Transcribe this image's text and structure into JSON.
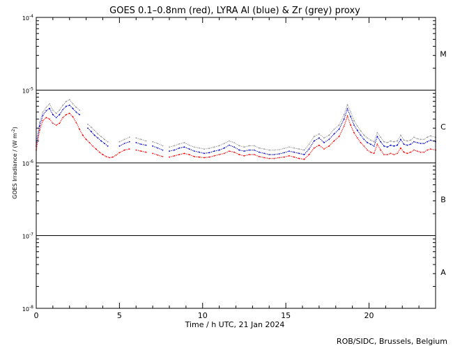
{
  "chart_data": {
    "type": "scatter",
    "title": "GOES 0.1–0.8nm (red), LYRA Al (blue) & Zr (grey) proxy",
    "xlabel": "Time / h UTC, 21 Jan 2024",
    "ylabel_prefix": "GOES Irradiance / (W m",
    "ylabel_sup": "-2",
    "ylabel_suffix": ")",
    "xlim": [
      0,
      24
    ],
    "ylim_log": [
      -8,
      -4
    ],
    "x_ticks": [
      {
        "value": 0,
        "label": "0"
      },
      {
        "value": 5,
        "label": "5"
      },
      {
        "value": 10,
        "label": "10"
      },
      {
        "value": 15,
        "label": "15"
      },
      {
        "value": 20,
        "label": "20"
      }
    ],
    "y_ticks": [
      {
        "exp": -4,
        "label_base": "10",
        "label_exp": "-4"
      },
      {
        "exp": -5,
        "label_base": "10",
        "label_exp": "-5"
      },
      {
        "exp": -6,
        "label_base": "10",
        "label_exp": "-6"
      },
      {
        "exp": -7,
        "label_base": "10",
        "label_exp": "-7"
      },
      {
        "exp": -8,
        "label_base": "10",
        "label_exp": "-8"
      }
    ],
    "class_lines": [
      -5,
      -6,
      -7
    ],
    "flare_classes": [
      {
        "label": "M",
        "center_exp": -4.5
      },
      {
        "label": "C",
        "center_exp": -5.5
      },
      {
        "label": "B",
        "center_exp": -6.5
      },
      {
        "label": "A",
        "center_exp": -7.5
      }
    ],
    "series": [
      {
        "name": "GOES 0.1–0.8nm",
        "color": "#ff0000",
        "x": [
          0.0,
          0.2,
          0.4,
          0.6,
          0.8,
          1.0,
          1.2,
          1.4,
          1.6,
          1.8,
          2.0,
          2.2,
          2.4,
          2.6,
          2.8,
          3.0,
          3.2,
          3.4,
          3.6,
          3.8,
          4.0,
          4.2,
          4.4,
          4.6,
          4.8,
          5.0,
          5.3,
          5.6,
          6.0,
          6.3,
          6.6,
          7.0,
          7.3,
          7.6,
          8.0,
          8.3,
          8.6,
          8.9,
          9.2,
          9.5,
          9.8,
          10.1,
          10.4,
          10.7,
          11.0,
          11.3,
          11.6,
          11.9,
          12.2,
          12.5,
          12.8,
          13.1,
          13.4,
          13.7,
          14.0,
          14.3,
          14.6,
          14.9,
          15.2,
          15.5,
          15.8,
          16.1,
          16.4,
          16.7,
          17.0,
          17.3,
          17.6,
          17.9,
          18.2,
          18.5,
          18.7,
          18.9,
          19.1,
          19.3,
          19.5,
          19.7,
          19.9,
          20.1,
          20.3,
          20.5,
          20.7,
          20.9,
          21.1,
          21.3,
          21.5,
          21.7,
          21.9,
          22.1,
          22.3,
          22.5,
          22.7,
          22.9,
          23.1,
          23.3,
          23.5,
          23.7,
          24.0
        ],
        "y": [
          1.5e-06,
          2.8e-06,
          3.8e-06,
          4.2e-06,
          4e-06,
          3.5e-06,
          3.3e-06,
          3.5e-06,
          4.2e-06,
          4.6e-06,
          4.8e-06,
          4.3e-06,
          3.6e-06,
          2.9e-06,
          2.4e-06,
          2.1e-06,
          1.9e-06,
          1.7e-06,
          1.55e-06,
          1.4e-06,
          1.3e-06,
          1.22e-06,
          1.18e-06,
          1.2e-06,
          1.28e-06,
          1.38e-06,
          1.5e-06,
          1.55e-06,
          1.5e-06,
          1.45e-06,
          1.4e-06,
          1.35e-06,
          1.28e-06,
          1.22e-06,
          1.2e-06,
          1.25e-06,
          1.3e-06,
          1.35e-06,
          1.3e-06,
          1.22e-06,
          1.2e-06,
          1.18e-06,
          1.2e-06,
          1.25e-06,
          1.3e-06,
          1.35e-06,
          1.45e-06,
          1.4e-06,
          1.3e-06,
          1.25e-06,
          1.3e-06,
          1.3e-06,
          1.22e-06,
          1.18e-06,
          1.15e-06,
          1.15e-06,
          1.18e-06,
          1.2e-06,
          1.25e-06,
          1.2e-06,
          1.15e-06,
          1.12e-06,
          1.3e-06,
          1.6e-06,
          1.75e-06,
          1.55e-06,
          1.7e-06,
          2e-06,
          2.3e-06,
          3.2e-06,
          4.4e-06,
          3.3e-06,
          2.6e-06,
          2.2e-06,
          1.9e-06,
          1.7e-06,
          1.5e-06,
          1.4e-06,
          1.35e-06,
          1.8e-06,
          1.5e-06,
          1.3e-06,
          1.3e-06,
          1.35e-06,
          1.3e-06,
          1.35e-06,
          1.6e-06,
          1.4e-06,
          1.35e-06,
          1.4e-06,
          1.5e-06,
          1.45e-06,
          1.4e-06,
          1.4e-06,
          1.5e-06,
          1.55e-06,
          1.5e-06
        ]
      },
      {
        "name": "LYRA Al",
        "color": "#0000cc",
        "x": [
          0.0,
          0.2,
          0.4,
          0.6,
          0.8,
          1.0,
          1.2,
          1.4,
          1.6,
          1.8,
          2.0,
          2.2,
          2.4,
          2.6,
          3.1,
          3.3,
          3.5,
          3.7,
          3.9,
          4.1,
          4.3,
          5.0,
          5.3,
          5.6,
          6.0,
          6.3,
          6.6,
          7.0,
          7.3,
          7.6,
          8.0,
          8.3,
          8.6,
          8.9,
          9.2,
          9.5,
          9.8,
          10.1,
          10.4,
          10.7,
          11.0,
          11.3,
          11.6,
          11.9,
          12.2,
          12.5,
          12.8,
          13.1,
          13.4,
          13.7,
          14.0,
          14.3,
          14.6,
          14.9,
          15.2,
          15.5,
          15.8,
          16.1,
          16.4,
          16.7,
          17.0,
          17.3,
          17.6,
          17.9,
          18.2,
          18.5,
          18.7,
          18.9,
          19.1,
          19.3,
          19.5,
          19.7,
          19.9,
          20.1,
          20.3,
          20.5,
          20.7,
          20.9,
          21.1,
          21.3,
          21.5,
          21.7,
          21.9,
          22.1,
          22.3,
          22.5,
          22.7,
          22.9,
          23.1,
          23.3,
          23.5,
          23.7,
          24.0
        ],
        "y": [
          1.7e-06,
          3.2e-06,
          4.5e-06,
          5.2e-06,
          5.6e-06,
          4.6e-06,
          4.2e-06,
          4.6e-06,
          5.4e-06,
          6e-06,
          6.2e-06,
          5.6e-06,
          5e-06,
          4.6e-06,
          3e-06,
          2.7e-06,
          2.4e-06,
          2.2e-06,
          2e-06,
          1.85e-06,
          1.7e-06,
          1.7e-06,
          1.85e-06,
          1.95e-06,
          1.9e-06,
          1.8e-06,
          1.75e-06,
          1.7e-06,
          1.6e-06,
          1.5e-06,
          1.45e-06,
          1.5e-06,
          1.6e-06,
          1.65e-06,
          1.55e-06,
          1.45e-06,
          1.4e-06,
          1.35e-06,
          1.38e-06,
          1.45e-06,
          1.5e-06,
          1.6e-06,
          1.75e-06,
          1.65e-06,
          1.5e-06,
          1.45e-06,
          1.5e-06,
          1.5e-06,
          1.4e-06,
          1.35e-06,
          1.3e-06,
          1.3e-06,
          1.33e-06,
          1.38e-06,
          1.45e-06,
          1.4e-06,
          1.35e-06,
          1.3e-06,
          1.55e-06,
          2e-06,
          2.2e-06,
          1.9e-06,
          2.1e-06,
          2.5e-06,
          2.9e-06,
          4e-06,
          5.5e-06,
          4.3e-06,
          3.3e-06,
          2.8e-06,
          2.4e-06,
          2.1e-06,
          1.9e-06,
          1.8e-06,
          1.7e-06,
          2.3e-06,
          1.95e-06,
          1.7e-06,
          1.65e-06,
          1.75e-06,
          1.7e-06,
          1.75e-06,
          2.1e-06,
          1.8e-06,
          1.75e-06,
          1.8e-06,
          1.95e-06,
          1.9e-06,
          1.85e-06,
          1.85e-06,
          1.95e-06,
          2.05e-06,
          1.95e-06
        ]
      },
      {
        "name": "Zr",
        "color": "#999999",
        "x": [
          0.0,
          0.2,
          0.4,
          0.6,
          0.8,
          1.0,
          1.2,
          1.4,
          1.6,
          1.8,
          2.0,
          2.2,
          2.4,
          2.6,
          3.1,
          3.3,
          3.5,
          3.7,
          3.9,
          4.1,
          4.3,
          5.0,
          5.3,
          5.6,
          6.0,
          6.3,
          6.6,
          7.0,
          7.3,
          7.6,
          8.0,
          8.3,
          8.6,
          8.9,
          9.2,
          9.5,
          9.8,
          10.1,
          10.4,
          10.7,
          11.0,
          11.3,
          11.6,
          11.9,
          12.2,
          12.5,
          12.8,
          13.1,
          13.4,
          13.7,
          14.0,
          14.3,
          14.6,
          14.9,
          15.2,
          15.5,
          15.8,
          16.1,
          16.4,
          16.7,
          17.0,
          17.3,
          17.6,
          17.9,
          18.2,
          18.5,
          18.7,
          18.9,
          19.1,
          19.3,
          19.5,
          19.7,
          19.9,
          20.1,
          20.3,
          20.5,
          20.7,
          20.9,
          21.1,
          21.3,
          21.5,
          21.7,
          21.9,
          22.1,
          22.3,
          22.5,
          22.7,
          22.9,
          23.1,
          23.3,
          23.5,
          23.7,
          24.0
        ],
        "y": [
          1.9e-06,
          3.6e-06,
          5e-06,
          5.8e-06,
          6.5e-06,
          5.3e-06,
          4.8e-06,
          5.3e-06,
          6.2e-06,
          7e-06,
          7.4e-06,
          6.5e-06,
          5.8e-06,
          5.3e-06,
          3.4e-06,
          3.1e-06,
          2.8e-06,
          2.5e-06,
          2.3e-06,
          2.1e-06,
          1.95e-06,
          1.95e-06,
          2.1e-06,
          2.25e-06,
          2.2e-06,
          2.1e-06,
          2e-06,
          1.95e-06,
          1.85e-06,
          1.72e-06,
          1.65e-06,
          1.72e-06,
          1.82e-06,
          1.9e-06,
          1.75e-06,
          1.65e-06,
          1.6e-06,
          1.55e-06,
          1.58e-06,
          1.65e-06,
          1.72e-06,
          1.85e-06,
          2e-06,
          1.9e-06,
          1.72e-06,
          1.65e-06,
          1.72e-06,
          1.72e-06,
          1.6e-06,
          1.55e-06,
          1.5e-06,
          1.5e-06,
          1.52e-06,
          1.58e-06,
          1.65e-06,
          1.6e-06,
          1.55e-06,
          1.5e-06,
          1.8e-06,
          2.3e-06,
          2.5e-06,
          2.2e-06,
          2.4e-06,
          2.9e-06,
          3.3e-06,
          4.6e-06,
          6.3e-06,
          5e-06,
          3.8e-06,
          3.2e-06,
          2.75e-06,
          2.4e-06,
          2.2e-06,
          2.05e-06,
          1.95e-06,
          2.6e-06,
          2.25e-06,
          1.95e-06,
          1.9e-06,
          2e-06,
          1.95e-06,
          2e-06,
          2.4e-06,
          2.05e-06,
          2e-06,
          2.05e-06,
          2.25e-06,
          2.15e-06,
          2.1e-06,
          2.1e-06,
          2.25e-06,
          2.35e-06,
          2.25e-06
        ]
      }
    ],
    "footer": "ROB/SIDC, Brussels, Belgium"
  }
}
